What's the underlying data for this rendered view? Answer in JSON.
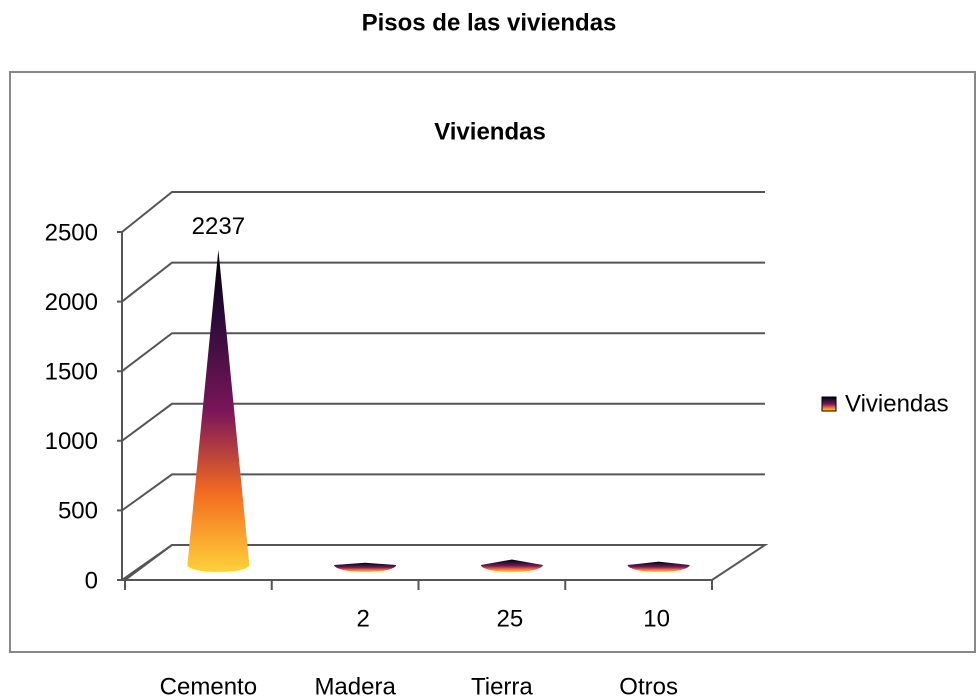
{
  "chart_data": {
    "type": "cone3d",
    "title": "Pisos de las viviendas",
    "chart_title": "Viviendas",
    "categories": [
      "Cemento",
      "Madera",
      "Tierra",
      "Otros"
    ],
    "series": [
      {
        "name": "Viviendas",
        "values": [
          2237,
          2,
          25,
          10
        ]
      }
    ],
    "ylim": [
      0,
      2500
    ],
    "yticks": [
      0,
      500,
      1000,
      1500,
      2000,
      2500
    ],
    "grid": true,
    "legend": "right"
  }
}
